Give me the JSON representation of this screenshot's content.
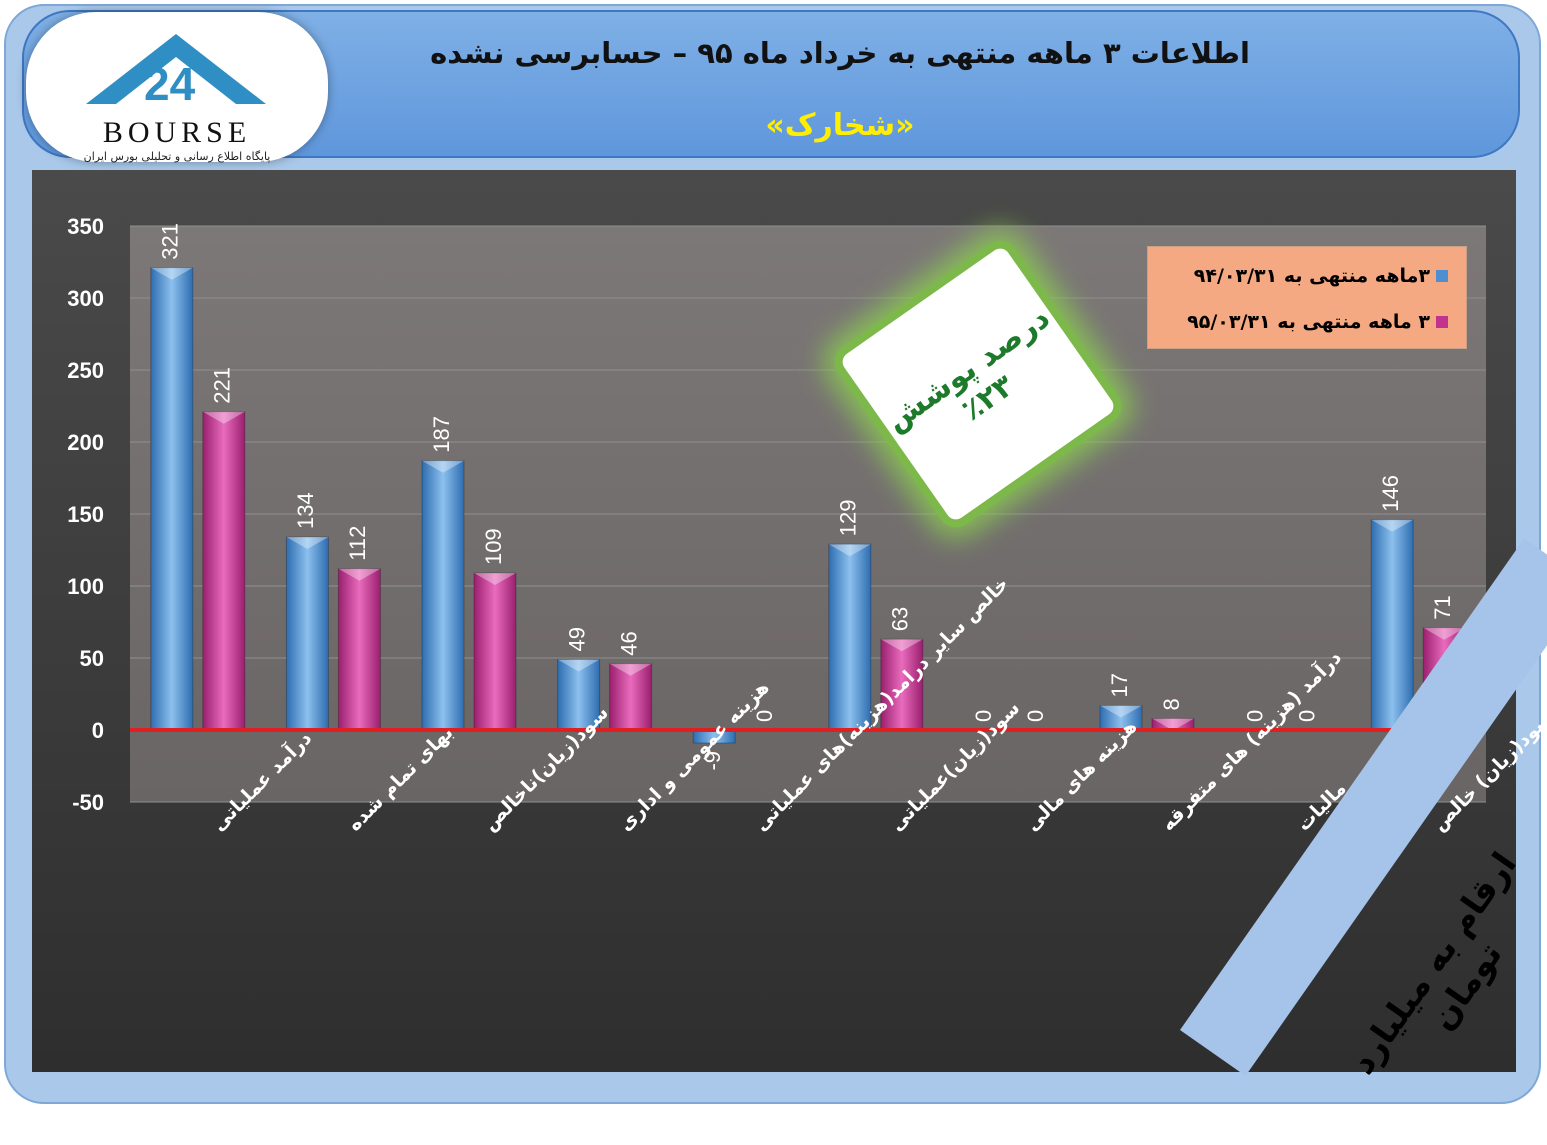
{
  "header": {
    "title": "اطلاعات ۳ ماهه منتهی به خرداد ماه ۹۵ – حسابرسی نشده",
    "company": "«شخارک»"
  },
  "logo": {
    "word": "BOURSE",
    "subtitle": "پایگاه اطلاع رسانی و تحلیلی بورس ایران"
  },
  "badge": {
    "line1": "درصد پوشش",
    "line2": "٪۲۳"
  },
  "units_note": "ارقام به میلیارد تومان",
  "colors": {
    "series1": "#5b9bd5",
    "series2": "#cc3399",
    "zero_line": "#e02020",
    "grid": "#8f8f8f"
  },
  "chart_data": {
    "type": "bar",
    "categories": [
      "درآمد عملیاتی",
      "بهای تمام شده",
      "سود(زیان)ناخالص",
      "هزینه عمومی و اداری",
      "خالص سایر درامد(هزینه)های عملیاتی",
      "سود(زیان)عملیاتی",
      "هزینه های مالی",
      "درآمد (هزینه) های متفرقه",
      "مالیات",
      "سود(زیان) خالص"
    ],
    "series": [
      {
        "name": "۳ماهه منتهی به ۹۴/۰۳/۳۱",
        "values": [
          321,
          134,
          187,
          49,
          -9,
          129,
          0,
          17,
          0,
          146
        ]
      },
      {
        "name": "۳ ماهه منتهی به ۹۵/۰۳/۳۱",
        "values": [
          221,
          112,
          109,
          46,
          0,
          63,
          0,
          8,
          0,
          71
        ]
      }
    ],
    "value_labels": [
      [
        "321",
        "134",
        "187",
        "49",
        "-9",
        "129",
        "0",
        "17",
        "0",
        "146"
      ],
      [
        "221",
        "112",
        "109",
        "46",
        "0",
        "63",
        "0",
        "8",
        "0",
        "71"
      ]
    ],
    "yticks": [
      "350",
      "300",
      "250",
      "200",
      "150",
      "100",
      "50",
      "0",
      "-50"
    ],
    "ylim": [
      -50,
      350
    ],
    "grid": true,
    "legend_position": "top-right"
  }
}
